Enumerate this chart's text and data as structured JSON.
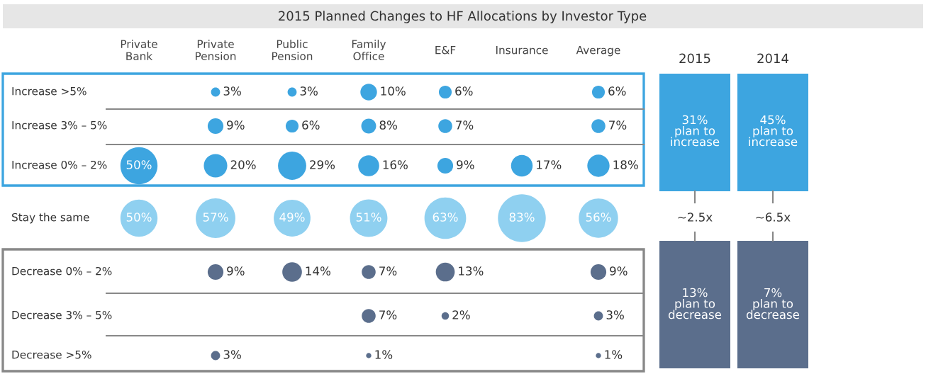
{
  "chart_data": {
    "type": "heatmap",
    "title": "2015 Planned Changes to HF Allocations by Investor Type",
    "categories": [
      "Private\nBank",
      "Private\nPension",
      "Public\nPension",
      "Family\nOffice",
      "E&F",
      "Insurance",
      "Average"
    ],
    "y_categories": [
      "Increase >5%",
      "Increase 3% – 5%",
      "Increase 0% – 2%",
      "Stay the same",
      "Decrease 0% – 2%",
      "Decrease 3% – 5%",
      "Decrease >5%"
    ],
    "cells": [
      [
        null,
        3,
        3,
        10,
        6,
        null,
        6
      ],
      [
        null,
        9,
        6,
        8,
        7,
        null,
        7
      ],
      [
        50,
        20,
        29,
        16,
        9,
        17,
        18
      ],
      [
        50,
        57,
        49,
        51,
        63,
        83,
        56
      ],
      [
        null,
        9,
        14,
        7,
        13,
        null,
        9
      ],
      [
        null,
        null,
        null,
        7,
        2,
        null,
        3
      ],
      [
        null,
        3,
        null,
        1,
        null,
        null,
        1
      ]
    ],
    "cell_labels": [
      [
        null,
        "3%",
        "3%",
        "10%",
        "6%",
        null,
        "6%"
      ],
      [
        null,
        "9%",
        "6%",
        "8%",
        "7%",
        null,
        "7%"
      ],
      [
        "50%",
        "20%",
        "29%",
        "16%",
        "9%",
        "17%",
        "18%"
      ],
      [
        "50%",
        "57%",
        "49%",
        "51%",
        "63%",
        "83%",
        "56%"
      ],
      [
        null,
        "9%",
        "14%",
        "7%",
        "13%",
        null,
        "9%"
      ],
      [
        null,
        null,
        null,
        "7%",
        "2%",
        null,
        "3%"
      ],
      [
        null,
        "3%",
        null,
        "1%",
        null,
        null,
        "1%"
      ]
    ],
    "colors": [
      "#3da5e0",
      "#3da5e0",
      "#3da5e0",
      "#8fd0f0",
      "#5b6e8c",
      "#5b6e8c",
      "#5b6e8c"
    ],
    "annotations": [
      "2015",
      "2014",
      "31%\nplan to\nincrease",
      "45%\nplan to\nincrease",
      "~2.5x",
      "~6.5x",
      "13%\nplan to\ndecrease",
      "7%\nplan to\ndecrease"
    ]
  }
}
